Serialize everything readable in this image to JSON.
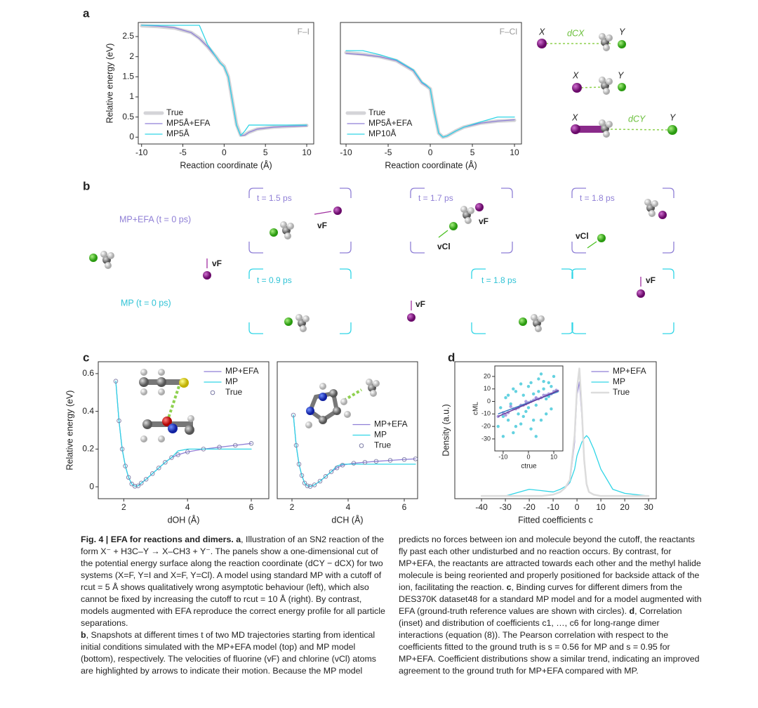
{
  "panel_letters": [
    "a",
    "b",
    "c",
    "d"
  ],
  "panel_a_labels": {
    "x": "X",
    "y": "Y",
    "d_cx": "dCX",
    "d_cy": "dCY"
  },
  "panel_b": {
    "rows": [
      "MP+EFA (t = 0 ps)",
      "MP (t = 0 ps)"
    ],
    "times_top": [
      "t = 1.5 ps",
      "t = 1.7 ps",
      "t = 1.8 ps"
    ],
    "times_bottom": [
      "t = 0.9 ps",
      "t = 1.8 ps"
    ],
    "v_f": "vF",
    "v_cl": "vCl"
  },
  "chart_data": [
    {
      "type": "line",
      "annotation": "F–I",
      "x_label": "Reaction coordinate (Å)",
      "y_label": "Relative energy (eV)",
      "legend": "lower left",
      "xlim": [
        -10.4,
        10.85
      ],
      "ylim": [
        -0.17,
        2.85
      ],
      "xticks": [
        -10,
        -5,
        0,
        5,
        10
      ],
      "yticks": [
        0,
        0.5,
        1.0,
        1.5,
        2.0,
        2.5
      ],
      "x": [
        -10,
        -8,
        -6,
        -4,
        -3,
        -2,
        -1,
        -0.5,
        0,
        0.5,
        1,
        1.5,
        2,
        2.5,
        3,
        4,
        6,
        8,
        10
      ],
      "series": [
        {
          "name": "True",
          "color": "#d4d4d8",
          "line_width": 5,
          "values": [
            2.77,
            2.75,
            2.71,
            2.6,
            2.46,
            2.25,
            2.0,
            1.86,
            1.76,
            1.5,
            0.9,
            0.32,
            0.05,
            0.06,
            0.12,
            0.2,
            0.25,
            0.27,
            0.29
          ]
        },
        {
          "name": "MP5Å+EFA",
          "color": "#8f7fd6",
          "line_width": 1.3,
          "values": [
            2.78,
            2.76,
            2.72,
            2.6,
            2.45,
            2.25,
            2.0,
            1.85,
            1.75,
            1.5,
            0.9,
            0.3,
            0.04,
            0.05,
            0.12,
            0.2,
            0.25,
            0.27,
            0.28
          ]
        },
        {
          "name": "MP5Å",
          "color": "#30d5e6",
          "line_width": 1.3,
          "values": [
            2.78,
            2.78,
            2.78,
            2.78,
            2.78,
            2.3,
            2.0,
            1.85,
            1.75,
            1.5,
            0.9,
            0.3,
            0.04,
            0.15,
            0.3,
            0.3,
            0.3,
            0.3,
            0.3
          ]
        }
      ]
    },
    {
      "type": "line",
      "annotation": "F–Cl",
      "x_label": "Reaction coordinate (Å)",
      "legend": "lower left",
      "xlim": [
        -10.67,
        10.83
      ],
      "ylim": [
        -0.17,
        2.85
      ],
      "xticks": [
        -10,
        -5,
        0,
        5,
        10
      ],
      "x": [
        -10,
        -8,
        -6,
        -4,
        -2,
        -1,
        -0.5,
        0,
        0.5,
        1,
        1.5,
        2,
        3,
        4,
        6,
        8,
        10
      ],
      "series": [
        {
          "name": "True",
          "color": "#d4d4d8",
          "line_width": 5,
          "values": [
            2.1,
            2.06,
            2.0,
            1.9,
            1.65,
            1.35,
            1.28,
            1.2,
            0.6,
            0.1,
            0.0,
            0.03,
            0.15,
            0.25,
            0.35,
            0.4,
            0.42
          ]
        },
        {
          "name": "MP5Å+EFA",
          "color": "#8f7fd6",
          "line_width": 1.3,
          "values": [
            2.08,
            2.05,
            2.0,
            1.9,
            1.65,
            1.35,
            1.28,
            1.2,
            0.6,
            0.1,
            0.0,
            0.03,
            0.15,
            0.25,
            0.35,
            0.4,
            0.43
          ]
        },
        {
          "name": "MP10Å",
          "color": "#30d5e6",
          "line_width": 1.3,
          "values": [
            2.15,
            2.15,
            2.05,
            1.92,
            1.67,
            1.37,
            1.3,
            1.2,
            0.6,
            0.1,
            0.0,
            0.03,
            0.15,
            0.25,
            0.38,
            0.5,
            0.5
          ]
        }
      ]
    },
    {
      "type": "line",
      "x_label": "dOH (Å)",
      "y_label": "Relative energy (eV)",
      "legend": "upper right",
      "xlim": [
        1.2,
        6.55
      ],
      "ylim": [
        -0.063,
        0.663
      ],
      "xticks": [
        2,
        4,
        6
      ],
      "yticks": [
        0,
        0.2,
        0.4,
        0.6
      ],
      "x": [
        1.75,
        1.85,
        1.95,
        2.05,
        2.15,
        2.25,
        2.35,
        2.45,
        2.55,
        2.7,
        2.9,
        3.1,
        3.3,
        3.5,
        3.7,
        4.0,
        4.5,
        5.0,
        5.5,
        6.0
      ],
      "series": [
        {
          "name": "MP+EFA",
          "color": "#8f7fd6",
          "line_width": 1.3,
          "values": [
            0.56,
            0.35,
            0.2,
            0.11,
            0.05,
            0.015,
            0.003,
            0.005,
            0.02,
            0.04,
            0.07,
            0.1,
            0.13,
            0.155,
            0.17,
            0.185,
            0.2,
            0.21,
            0.22,
            0.23
          ]
        },
        {
          "name": "MP",
          "color": "#30d5e6",
          "line_width": 1.3,
          "values": [
            0.56,
            0.35,
            0.2,
            0.11,
            0.05,
            0.015,
            0.003,
            0.005,
            0.02,
            0.04,
            0.07,
            0.1,
            0.13,
            0.155,
            0.19,
            0.2,
            0.2,
            0.2,
            0.2,
            0.2
          ]
        },
        {
          "name": "True",
          "color": "#7c7ca6",
          "style": "markers",
          "values": [
            0.56,
            0.35,
            0.2,
            0.11,
            0.05,
            0.015,
            0.003,
            0.005,
            0.02,
            0.04,
            0.07,
            0.1,
            0.13,
            0.155,
            0.17,
            0.185,
            0.2,
            0.21,
            0.22,
            0.23
          ]
        }
      ]
    },
    {
      "type": "line",
      "x_label": "dCH (Å)",
      "legend": "center right",
      "xlim": [
        1.475,
        6.475
      ],
      "ylim": [
        -0.063,
        0.663
      ],
      "xticks": [
        2,
        4,
        6
      ],
      "x": [
        2.05,
        2.15,
        2.25,
        2.35,
        2.45,
        2.55,
        2.65,
        2.8,
        3.0,
        3.2,
        3.4,
        3.6,
        3.8,
        4.2,
        4.6,
        5.0,
        5.5,
        6.0,
        6.4
      ],
      "series": [
        {
          "name": "MP+EFA",
          "color": "#8f7fd6",
          "line_width": 1.3,
          "values": [
            0.38,
            0.22,
            0.12,
            0.06,
            0.02,
            0.005,
            0.002,
            0.01,
            0.03,
            0.055,
            0.08,
            0.1,
            0.115,
            0.125,
            0.13,
            0.135,
            0.14,
            0.145,
            0.148
          ]
        },
        {
          "name": "MP",
          "color": "#30d5e6",
          "line_width": 1.3,
          "values": [
            0.38,
            0.22,
            0.12,
            0.06,
            0.02,
            0.005,
            0.002,
            0.01,
            0.03,
            0.055,
            0.08,
            0.11,
            0.12,
            0.12,
            0.12,
            0.12,
            0.12,
            0.12,
            0.12
          ]
        },
        {
          "name": "True",
          "color": "#7c7ca6",
          "style": "markers",
          "values": [
            0.38,
            0.22,
            0.12,
            0.06,
            0.02,
            0.005,
            0.002,
            0.01,
            0.03,
            0.055,
            0.08,
            0.1,
            0.115,
            0.125,
            0.13,
            0.135,
            0.14,
            0.145,
            0.148
          ]
        }
      ]
    },
    {
      "type": "line",
      "x_label": "Fitted coefficients c",
      "y_label": "Density (a.u.)",
      "legend": "upper right",
      "xlim": [
        -51.2,
        33.2
      ],
      "ylim": [
        -0.02,
        1.0
      ],
      "xticks": [
        -40,
        -30,
        -20,
        -10,
        0,
        10,
        20,
        30
      ],
      "x": [
        -40,
        -30,
        -20,
        -15,
        -10,
        -7,
        -5,
        -3,
        -1,
        0,
        1,
        2,
        3,
        4,
        5,
        7,
        10,
        15,
        20,
        30
      ],
      "series": [
        {
          "name": "MP+EFA",
          "color": "#8f7fd6",
          "line_width": 1.3,
          "values": [
            0,
            0,
            0,
            0,
            0.01,
            0.03,
            0.06,
            0.1,
            0.4,
            0.75,
            0.85,
            0.6,
            0.25,
            0.08,
            0.03,
            0.01,
            0,
            0,
            0,
            0
          ]
        },
        {
          "name": "MP",
          "color": "#30d5e6",
          "line_width": 1.3,
          "values": [
            0,
            0,
            0.05,
            0.04,
            0.03,
            0.05,
            0.07,
            0.1,
            0.2,
            0.3,
            0.35,
            0.4,
            0.43,
            0.45,
            0.43,
            0.35,
            0.2,
            0.05,
            0.02,
            0
          ]
        },
        {
          "name": "True",
          "color": "#dcdcdc",
          "line_width": 2.5,
          "values": [
            0,
            0,
            0,
            0,
            0.01,
            0.03,
            0.06,
            0.12,
            0.45,
            0.8,
            0.95,
            0.65,
            0.27,
            0.09,
            0.03,
            0.01,
            0,
            0,
            0,
            0
          ]
        }
      ]
    },
    {
      "type": "scatter",
      "x_label": "ctrue",
      "y_label": "cML",
      "xlim": [
        -13.3,
        13.6
      ],
      "ylim": [
        -39.6,
        28.4
      ],
      "xticks": [
        -10,
        0,
        10
      ],
      "yticks": [
        -30,
        -20,
        -10,
        0,
        10,
        20
      ],
      "series": [
        {
          "color": "#30c3d6",
          "x": [
            -12,
            -11,
            -10,
            -9,
            -8,
            -7,
            -6,
            -5,
            -4,
            -3,
            -2,
            -1,
            0,
            1,
            2,
            3,
            4,
            5,
            6,
            7,
            8,
            9,
            10,
            11,
            -8,
            -5,
            -2,
            1,
            3,
            5,
            7,
            9,
            -10,
            -6,
            -3,
            0,
            2,
            4,
            6,
            8
          ],
          "values": [
            -20,
            -5,
            -28,
            3,
            -15,
            -2,
            -25,
            8,
            -10,
            -18,
            5,
            -8,
            12,
            -22,
            6,
            -3,
            18,
            -15,
            10,
            2,
            15,
            -6,
            20,
            8,
            5,
            -20,
            -12,
            15,
            -28,
            22,
            -10,
            12,
            -12,
            10,
            14,
            -5,
            -15,
            8,
            16,
            4
          ]
        },
        {
          "color": "#8f7fd6",
          "x": [
            -12,
            -10,
            -8,
            -6,
            -4,
            -3,
            -2,
            -1,
            0,
            1,
            2,
            3,
            4,
            5,
            6,
            7,
            8,
            9,
            10,
            11,
            -7,
            -5,
            -9,
            -1,
            3
          ],
          "values": [
            -12,
            -9,
            -9,
            -6,
            -5,
            -3,
            -3,
            -2,
            -1,
            0,
            1,
            2,
            2,
            3,
            5,
            5,
            6,
            6,
            8,
            9,
            -4,
            -6,
            -11,
            0,
            3
          ]
        }
      ],
      "fits": [
        {
          "color": "#3a7ec2",
          "x": [
            -12,
            12
          ],
          "values": [
            -10,
            8
          ]
        },
        {
          "color": "#6a3a9c",
          "x": [
            -12,
            12
          ],
          "values": [
            -12,
            9
          ]
        }
      ]
    }
  ],
  "caption": {
    "paragraphs": [
      [
        {
          "text": "Fig. 4 | EFA for reactions and dimers. a",
          "bold": true
        },
        {
          "text": ", Illustration of an SN2 reaction of the form X⁻ + H3C–Y → X–CH3 + Y⁻. The panels show a one-dimensional cut of the potential energy surface along the reaction coordinate (dCY − dCX) for two systems (X=F, Y=I and X=F, Y=Cl). A model using standard MP with a cutoff of rcut = 5 Å shows qualitatively wrong asymptotic behaviour (left), which also cannot be fixed by increasing the cutoff to rcut = 10 Å (right). By contrast, models augmented with EFA reproduce the correct energy profile for all particle separations."
        }
      ],
      [
        {
          "text": "b",
          "bold": true
        },
        {
          "text": ", Snapshots at different times t of two MD trajectories starting from identical initial conditions simulated with the MP+EFA model (top) and MP model (bottom), respectively. The velocities of fluorine (vF) and chlorine (vCl) atoms are highlighted by arrows to indicate their motion. Because the MP model predicts no forces between ion and molecule beyond the cutoff, the reactants fly past each other undisturbed and no reaction occurs. By contrast, for MP+EFA, the reactants are attracted towards each other and the methyl halide molecule is being reoriented and properly positioned for backside attack of the ion, facilitating the reaction. "
        },
        {
          "text": "c",
          "bold": true
        },
        {
          "text": ", Binding curves for different dimers from the DES370K dataset48 for a standard MP model and for a model augmented with EFA (ground-truth reference values are shown with circles). "
        },
        {
          "text": "d",
          "bold": true
        },
        {
          "text": ", Correlation (inset) and distribution of coefficients c1, …, c6 for long-range dimer interactions (equation (8)). The Pearson correlation with respect to the coefficients fitted to the ground truth is s = 0.56 for MP and s = 0.95 for MP+EFA. Coefficient distributions show a similar trend, indicating an improved agreement to the ground truth for MP+EFA compared with MP."
        }
      ]
    ]
  }
}
